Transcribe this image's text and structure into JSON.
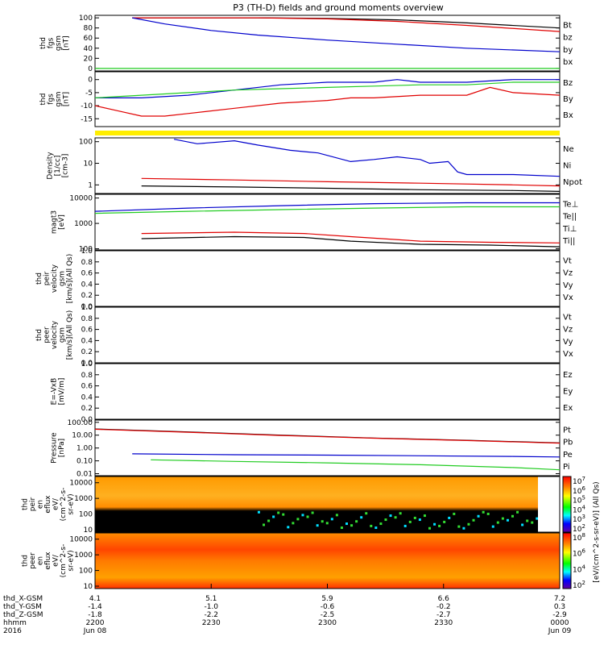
{
  "title": "P3 (TH-D) fields and ground moments overview",
  "colors": {
    "black": "#000000",
    "red": "#e00000",
    "green": "#22cc22",
    "blue": "#0000cc",
    "yellow": "#ffee00"
  },
  "chart_data": {
    "type": "line",
    "x_axis": {
      "start": "2200",
      "end": "0000"
    },
    "panels": [
      {
        "id": "fgs-gsm",
        "ylabel": [
          "thd",
          "fgs",
          "gsm",
          "[nT]"
        ],
        "ylim": [
          -5,
          105
        ],
        "log": false,
        "yticks": [
          "100",
          "80",
          "60",
          "40",
          "20",
          "0"
        ],
        "ytick_values": [
          100,
          80,
          60,
          40,
          20,
          0
        ],
        "legend": [
          {
            "label": "Bt",
            "color": "black"
          },
          {
            "label": "bz",
            "color": "red"
          },
          {
            "label": "by",
            "color": "green"
          },
          {
            "label": "bx",
            "color": "blue"
          }
        ],
        "series": [
          {
            "color": "black",
            "x": [
              0.08,
              0.2,
              0.35,
              0.5,
              0.65,
              0.8,
              1.0
            ],
            "y": [
              100,
              100,
              100,
              99,
              96,
              90,
              80
            ]
          },
          {
            "color": "red",
            "x": [
              0.08,
              0.2,
              0.35,
              0.5,
              0.65,
              0.8,
              1.0
            ],
            "y": [
              100,
              100,
              100,
              98,
              93,
              85,
              73
            ]
          },
          {
            "color": "blue",
            "x": [
              0.08,
              0.15,
              0.25,
              0.35,
              0.5,
              0.65,
              0.8,
              1.0
            ],
            "y": [
              100,
              88,
              75,
              66,
              56,
              48,
              40,
              33
            ]
          },
          {
            "color": "green",
            "x": [
              0,
              0.5,
              1.0
            ],
            "y": [
              0,
              0,
              0
            ]
          }
        ]
      },
      {
        "id": "fgs-gsm-zoom",
        "ylabel": [
          "thd",
          "fgs",
          "gsm",
          "[nT]"
        ],
        "ylim": [
          -18,
          3
        ],
        "log": false,
        "yticks": [
          "0",
          "-5",
          "-10",
          "-15"
        ],
        "ytick_values": [
          0,
          -5,
          -10,
          -15
        ],
        "legend": [
          {
            "label": "Bz",
            "color": "red"
          },
          {
            "label": "By",
            "color": "green"
          },
          {
            "label": "Bx",
            "color": "blue"
          }
        ],
        "series": [
          {
            "color": "blue",
            "x": [
              0,
              0.1,
              0.2,
              0.3,
              0.4,
              0.5,
              0.6,
              0.65,
              0.7,
              0.8,
              0.9,
              1.0
            ],
            "y": [
              -7,
              -7,
              -6,
              -4,
              -2,
              -1,
              -1,
              0,
              -1,
              -1,
              0,
              0
            ]
          },
          {
            "color": "green",
            "x": [
              0,
              0.1,
              0.2,
              0.3,
              0.4,
              0.5,
              0.6,
              0.7,
              0.8,
              0.9,
              1.0
            ],
            "y": [
              -7,
              -6,
              -5,
              -4,
              -3.5,
              -3,
              -2.5,
              -2,
              -2,
              -1,
              -1
            ]
          },
          {
            "color": "red",
            "x": [
              0,
              0.05,
              0.1,
              0.15,
              0.2,
              0.3,
              0.4,
              0.5,
              0.55,
              0.6,
              0.7,
              0.8,
              0.85,
              0.9,
              1.0
            ],
            "y": [
              -10,
              -12,
              -14,
              -14,
              -13,
              -11,
              -9,
              -8,
              -7,
              -7,
              -6,
              -6,
              -3,
              -5,
              -6
            ]
          }
        ]
      },
      {
        "id": "density",
        "ylabel": [
          "Density",
          "[1/cc]",
          "[cm-3]"
        ],
        "ylim": [
          0.4,
          150
        ],
        "log": true,
        "yticks": [
          "100",
          "10",
          "1"
        ],
        "ytick_values": [
          100,
          10,
          1
        ],
        "legend": [
          {
            "label": "Ne",
            "color": "red"
          },
          {
            "label": "Ni",
            "color": "black"
          },
          {
            "label": "Npot",
            "color": "blue"
          }
        ],
        "series": [
          {
            "color": "blue",
            "x": [
              0.17,
              0.22,
              0.3,
              0.35,
              0.42,
              0.48,
              0.55,
              0.6,
              0.65,
              0.7,
              0.72,
              0.76,
              0.78,
              0.8,
              0.9,
              1.0
            ],
            "y": [
              130,
              80,
              110,
              70,
              40,
              30,
              12,
              15,
              20,
              15,
              10,
              12,
              4,
              3,
              3,
              2.5
            ]
          },
          {
            "color": "red",
            "x": [
              0.1,
              0.3,
              0.5,
              0.7,
              0.9,
              1.0
            ],
            "y": [
              2.0,
              1.7,
              1.4,
              1.2,
              1.0,
              0.9
            ]
          },
          {
            "color": "black",
            "x": [
              0.1,
              0.3,
              0.5,
              0.7,
              0.9,
              1.0
            ],
            "y": [
              0.9,
              0.8,
              0.7,
              0.6,
              0.55,
              0.5
            ]
          }
        ]
      },
      {
        "id": "temperature",
        "ylabel": [
          "magt3",
          "[eV]"
        ],
        "ylim": [
          90,
          14000
        ],
        "log": true,
        "yticks": [
          "10000",
          "1000",
          "100"
        ],
        "ytick_values": [
          10000,
          1000,
          100
        ],
        "legend": [
          {
            "label": "Te⊥",
            "color": "red"
          },
          {
            "label": "Te||",
            "color": "black"
          },
          {
            "label": "Ti⊥",
            "color": "green"
          },
          {
            "label": "Ti||",
            "color": "green"
          }
        ],
        "series": [
          {
            "color": "blue",
            "x": [
              0,
              0.2,
              0.4,
              0.6,
              0.8,
              1.0
            ],
            "y": [
              3000,
              4000,
              5000,
              6000,
              6500,
              6500
            ]
          },
          {
            "color": "green",
            "x": [
              0,
              0.2,
              0.4,
              0.6,
              0.8,
              1.0
            ],
            "y": [
              2500,
              3000,
              3500,
              4000,
              4500,
              4500
            ]
          },
          {
            "color": "red",
            "x": [
              0.1,
              0.3,
              0.45,
              0.55,
              0.7,
              0.85,
              1.0
            ],
            "y": [
              400,
              450,
              400,
              300,
              200,
              180,
              170
            ]
          },
          {
            "color": "black",
            "x": [
              0.1,
              0.3,
              0.45,
              0.55,
              0.7,
              0.85,
              1.0
            ],
            "y": [
              250,
              300,
              280,
              200,
              150,
              140,
              120
            ]
          }
        ]
      },
      {
        "id": "peir-velocity",
        "ylabel": [
          "thd",
          "peir",
          "velocity",
          "gsm",
          "[km/s](All Qs)"
        ],
        "ylim": [
          0,
          1
        ],
        "log": false,
        "yticks": [
          "1.0",
          "0.8",
          "0.6",
          "0.4",
          "0.2",
          "0.0"
        ],
        "ytick_values": [
          1.0,
          0.8,
          0.6,
          0.4,
          0.2,
          0.0
        ],
        "legend": [
          {
            "label": "Vt",
            "color": "black"
          },
          {
            "label": "Vz",
            "color": "red"
          },
          {
            "label": "Vy",
            "color": "green"
          },
          {
            "label": "Vx",
            "color": "blue"
          }
        ],
        "series": []
      },
      {
        "id": "peer-velocity",
        "ylabel": [
          "thd",
          "peer",
          "velocity",
          "gsm",
          "[km/s](All Qs)"
        ],
        "ylim": [
          0,
          1
        ],
        "log": false,
        "yticks": [
          "1.0",
          "0.8",
          "0.6",
          "0.4",
          "0.2",
          "0.0"
        ],
        "ytick_values": [
          1.0,
          0.8,
          0.6,
          0.4,
          0.2,
          0.0
        ],
        "legend": [
          {
            "label": "Vt",
            "color": "black"
          },
          {
            "label": "Vz",
            "color": "red"
          },
          {
            "label": "Vy",
            "color": "green"
          },
          {
            "label": "Vx",
            "color": "blue"
          }
        ],
        "series": []
      },
      {
        "id": "efield",
        "ylabel": [
          "E=-VxB",
          "[mV/m]"
        ],
        "ylim": [
          0,
          1
        ],
        "log": false,
        "yticks": [
          "1.0",
          "0.8",
          "0.6",
          "0.4",
          "0.2",
          "0.0"
        ],
        "ytick_values": [
          1.0,
          0.8,
          0.6,
          0.4,
          0.2,
          0.0
        ],
        "legend": [
          {
            "label": "Ez",
            "color": "red"
          },
          {
            "label": "Ey",
            "color": "green"
          },
          {
            "label": "Ex",
            "color": "blue"
          }
        ],
        "series": []
      },
      {
        "id": "pressure",
        "ylabel": [
          "Pressure",
          "[nPa]"
        ],
        "ylim": [
          0.007,
          150
        ],
        "log": true,
        "yticks": [
          "100.00",
          "10.00",
          "1.00",
          "0.10",
          "0.01"
        ],
        "ytick_values": [
          100,
          10,
          1,
          0.1,
          0.01
        ],
        "legend": [
          {
            "label": "Pt",
            "color": "black"
          },
          {
            "label": "Pb",
            "color": "red"
          },
          {
            "label": "Pe",
            "color": "green"
          },
          {
            "label": "Pi",
            "color": "blue"
          }
        ],
        "series": [
          {
            "color": "black",
            "x": [
              0,
              0.2,
              0.4,
              0.6,
              0.8,
              1.0
            ],
            "y": [
              30,
              18,
              10,
              6,
              4,
              2.5
            ]
          },
          {
            "color": "red",
            "x": [
              0,
              0.2,
              0.4,
              0.6,
              0.8,
              1.0
            ],
            "y": [
              29,
              17,
              9.5,
              5.8,
              3.8,
              2.4
            ]
          },
          {
            "color": "blue",
            "x": [
              0.08,
              0.3,
              0.5,
              0.7,
              0.9,
              1.0
            ],
            "y": [
              0.35,
              0.3,
              0.28,
              0.25,
              0.22,
              0.2
            ]
          },
          {
            "color": "green",
            "x": [
              0.12,
              0.3,
              0.5,
              0.7,
              0.9,
              1.0
            ],
            "y": [
              0.12,
              0.09,
              0.07,
              0.05,
              0.03,
              0.02
            ]
          }
        ]
      }
    ],
    "spectrograms": [
      {
        "id": "peir-eflux",
        "ylabel": [
          "thd",
          "peir",
          "en",
          "eflux",
          "eV/",
          "(cm^2-s-",
          "sr-eV)"
        ],
        "yticks": [
          "10000",
          "1000",
          "100",
          "10"
        ],
        "ytick_values": [
          10000,
          1000,
          100,
          10
        ],
        "ylim": [
          7,
          25000
        ],
        "colorbar_ticks": [
          "10^7",
          "10^6",
          "10^5",
          "10^4",
          "10^3",
          "10^2"
        ]
      },
      {
        "id": "peer-eflux",
        "ylabel": [
          "thd",
          "peer",
          "en",
          "eflux",
          "eV/",
          "(cm^2-s-",
          "sr-eV)"
        ],
        "yticks": [
          "10000",
          "1000",
          "100",
          "10"
        ],
        "ytick_values": [
          10000,
          1000,
          100,
          10
        ],
        "ylim": [
          7,
          25000
        ],
        "colorbar_ticks": [
          "10^8",
          "10^6",
          "10^4",
          "10^2"
        ]
      }
    ],
    "colorbar_label": "[eV/(cm^2-s-sr-eV)] (All Qs)",
    "ephemeris": {
      "row_labels": [
        "thd_X-GSM",
        "thd_Y-GSM",
        "thd_Z-GSM",
        "hhmm",
        "2016"
      ],
      "columns": [
        {
          "x": 0.0,
          "values": [
            "4.1",
            "-1.4",
            "-1.8",
            "2200",
            "Jun 08"
          ]
        },
        {
          "x": 0.25,
          "values": [
            "5.1",
            "-1.0",
            "-2.2",
            "2230",
            ""
          ]
        },
        {
          "x": 0.5,
          "values": [
            "5.9",
            "-0.6",
            "-2.5",
            "2300",
            ""
          ]
        },
        {
          "x": 0.75,
          "values": [
            "6.6",
            "-0.2",
            "-2.7",
            "2330",
            ""
          ]
        },
        {
          "x": 1.0,
          "values": [
            "7.2",
            "0.3",
            "-2.9",
            "0000",
            "Jun 09"
          ]
        }
      ]
    }
  }
}
